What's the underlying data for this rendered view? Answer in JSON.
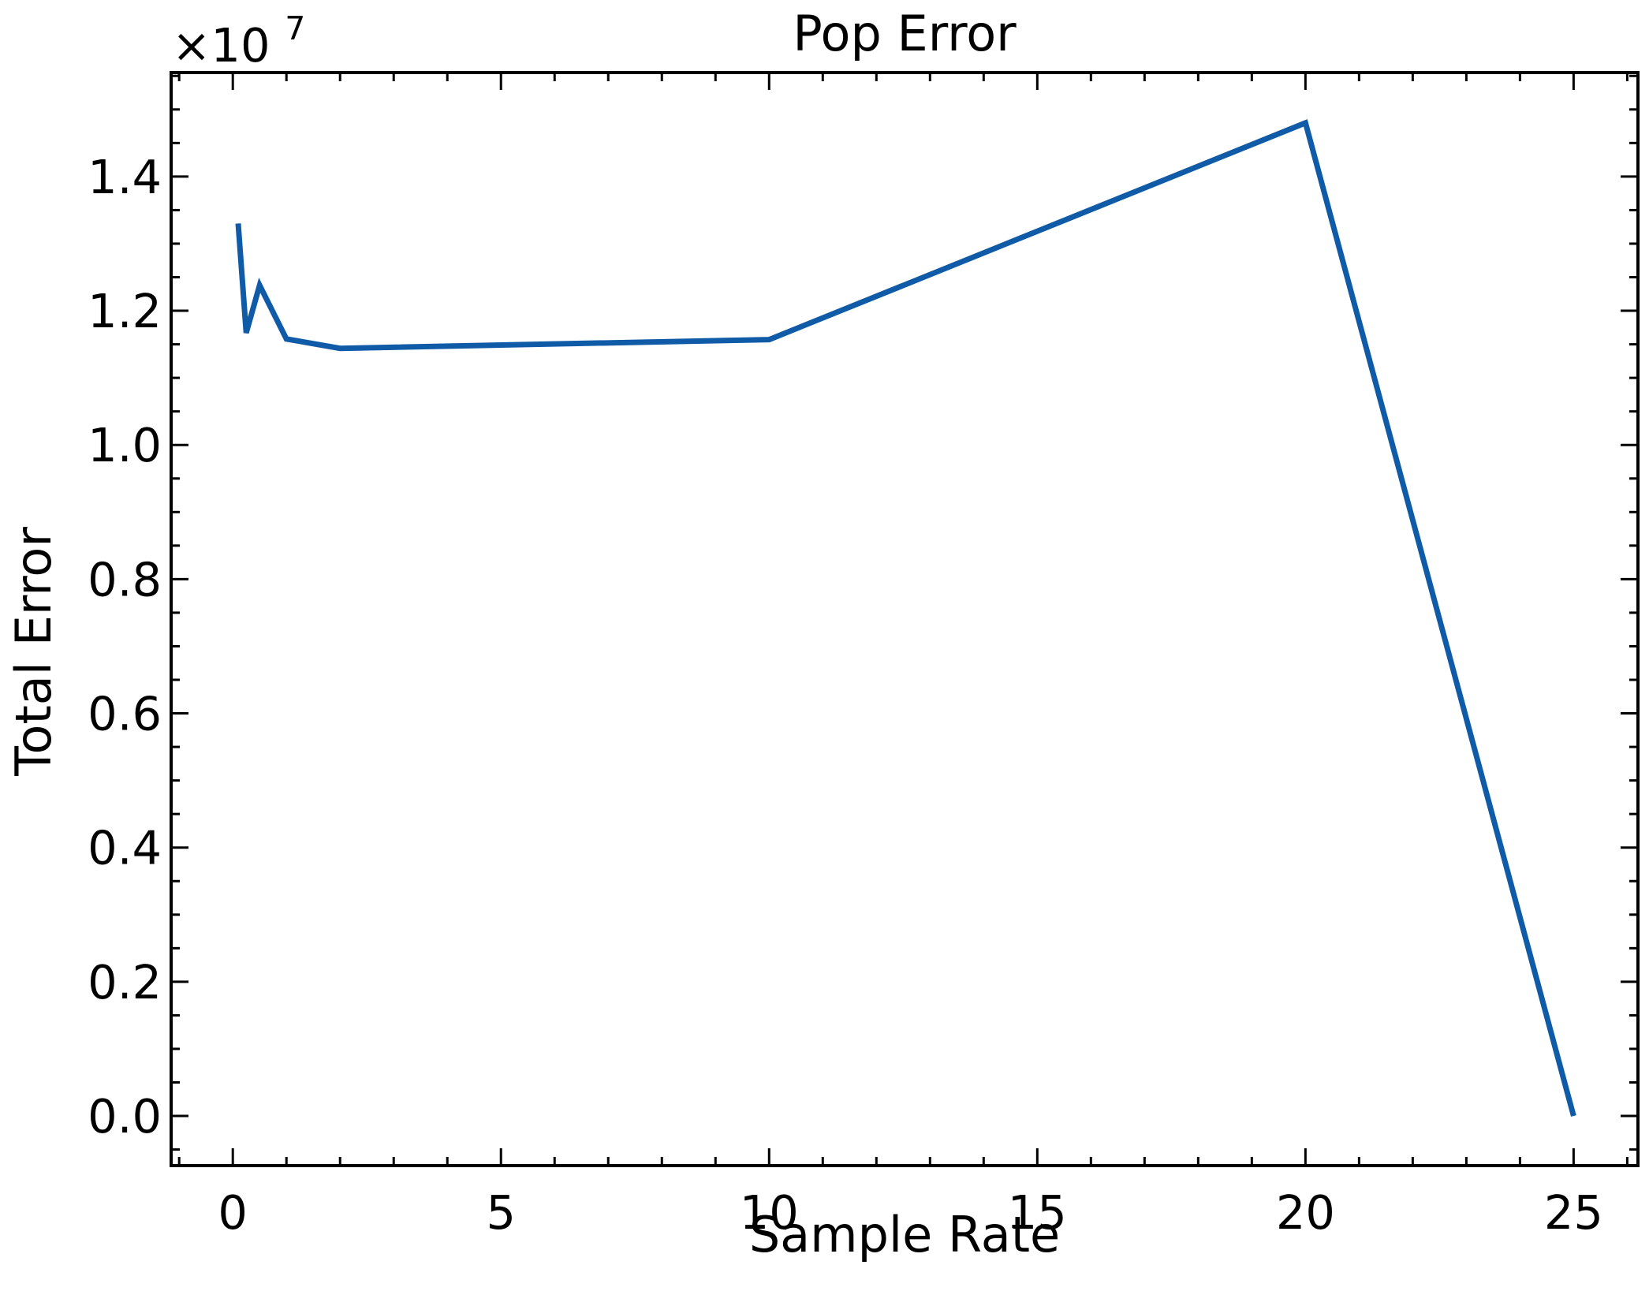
{
  "chart_data": {
    "type": "line",
    "title": "Pop Error",
    "xlabel": "Sample Rate",
    "ylabel": "Total Error",
    "y_offset_label": {
      "base": "×10",
      "exponent": "7"
    },
    "xlim": [
      -1.15,
      26.2
    ],
    "ylim": [
      -740000,
      15550000
    ],
    "x_ticks": [
      0,
      5,
      10,
      15,
      20,
      25
    ],
    "x_tick_labels": [
      "0",
      "5",
      "10",
      "15",
      "20",
      "25"
    ],
    "x_minor_step": 1,
    "y_ticks": [
      0,
      2000000,
      4000000,
      6000000,
      8000000,
      10000000,
      12000000,
      14000000
    ],
    "y_tick_labels": [
      "0.0",
      "0.2",
      "0.4",
      "0.6",
      "0.8",
      "1.0",
      "1.2",
      "1.4"
    ],
    "y_minor_step": 500000,
    "tick_direction": "in",
    "grid": false,
    "series": [
      {
        "color": "#0f5ba7",
        "x": [
          0.1,
          0.25,
          0.5,
          1,
          2,
          10,
          20,
          25
        ],
        "y": [
          13300000,
          11670000,
          12380000,
          11580000,
          11440000,
          11570000,
          14800000,
          0
        ]
      }
    ]
  }
}
